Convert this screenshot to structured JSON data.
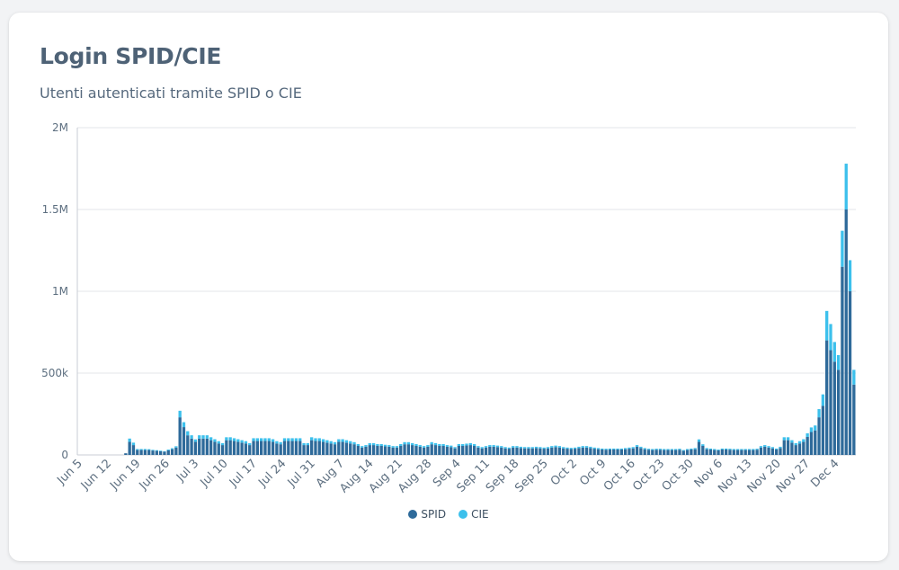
{
  "card": {
    "title": "Login SPID/CIE",
    "subtitle": "Utenti autenticati tramite SPID o CIE"
  },
  "colors": {
    "SPID": "#2e6a9a",
    "CIE": "#3cc0ec",
    "grid": "#e3e6ea"
  },
  "chart_data": {
    "type": "bar",
    "stacked": true,
    "title": "Login SPID/CIE",
    "subtitle": "Utenti autenticati tramite SPID o CIE",
    "xlabel": "",
    "ylabel": "",
    "ylim": [
      0,
      2000000
    ],
    "y_ticks": [
      {
        "value": 0,
        "label": "0"
      },
      {
        "value": 500000,
        "label": "500k"
      },
      {
        "value": 1000000,
        "label": "1M"
      },
      {
        "value": 1500000,
        "label": "1.5M"
      },
      {
        "value": 2000000,
        "label": "2M"
      }
    ],
    "x_tick_labels": [
      "Jun 5",
      "Jun 12",
      "Jun 19",
      "Jun 26",
      "Jul 3",
      "Jul 10",
      "Jul 17",
      "Jul 24",
      "Jul 31",
      "Aug 7",
      "Aug 14",
      "Aug 21",
      "Aug 28",
      "Sep 4",
      "Sep 11",
      "Sep 18",
      "Sep 25",
      "Oct 2",
      "Oct 9",
      "Oct 16",
      "Oct 23",
      "Oct 30",
      "Nov 6",
      "Nov 13",
      "Nov 20",
      "Nov 27",
      "Dec 4"
    ],
    "legend_position": "bottom-center",
    "grid": true,
    "series": [
      {
        "name": "SPID",
        "values": [
          0,
          0,
          0,
          0,
          0,
          0,
          0,
          0,
          0,
          0,
          0,
          0,
          10000,
          80000,
          60000,
          30000,
          30000,
          30000,
          30000,
          27000,
          25000,
          22000,
          20000,
          28000,
          35000,
          45000,
          230000,
          170000,
          120000,
          100000,
          80000,
          100000,
          100000,
          100000,
          90000,
          80000,
          70000,
          60000,
          90000,
          90000,
          85000,
          80000,
          75000,
          70000,
          60000,
          85000,
          85000,
          85000,
          85000,
          85000,
          80000,
          70000,
          65000,
          85000,
          85000,
          85000,
          85000,
          85000,
          60000,
          60000,
          90000,
          85000,
          85000,
          80000,
          75000,
          70000,
          65000,
          80000,
          80000,
          75000,
          70000,
          65000,
          55000,
          45000,
          50000,
          60000,
          60000,
          55000,
          55000,
          52000,
          50000,
          45000,
          45000,
          55000,
          65000,
          65000,
          60000,
          55000,
          50000,
          45000,
          50000,
          65000,
          60000,
          55000,
          55000,
          50000,
          48000,
          40000,
          55000,
          55000,
          58000,
          60000,
          55000,
          45000,
          40000,
          45000,
          50000,
          50000,
          48000,
          45000,
          40000,
          38000,
          45000,
          45000,
          42000,
          40000,
          40000,
          40000,
          42000,
          40000,
          38000,
          40000,
          45000,
          48000,
          45000,
          40000,
          38000,
          36000,
          38000,
          42000,
          45000,
          45000,
          42000,
          38000,
          35000,
          33000,
          32000,
          33000,
          33000,
          33000,
          33000,
          35000,
          38000,
          40000,
          50000,
          42000,
          35000,
          32000,
          30000,
          32000,
          32000,
          30000,
          30000,
          30000,
          30000,
          32000,
          25000,
          30000,
          33000,
          35000,
          80000,
          55000,
          35000,
          33000,
          30000,
          28000,
          33000,
          33000,
          32000,
          30000,
          30000,
          30000,
          30000,
          30000,
          30000,
          32000,
          45000,
          50000,
          45000,
          40000,
          33000,
          42000,
          90000,
          90000,
          75000,
          60000,
          70000,
          80000,
          110000,
          140000,
          150000,
          230000,
          300000,
          700000,
          640000,
          570000,
          520000,
          1150000,
          1500000,
          1000000,
          430000
        ]
      },
      {
        "name": "CIE",
        "values": [
          0,
          0,
          0,
          0,
          0,
          0,
          0,
          0,
          0,
          0,
          0,
          0,
          0,
          20000,
          15000,
          6000,
          6000,
          6000,
          5000,
          4000,
          4000,
          4000,
          3000,
          5000,
          6000,
          8000,
          40000,
          30000,
          25000,
          20000,
          15000,
          20000,
          20000,
          20000,
          18000,
          16000,
          14000,
          12000,
          18000,
          18000,
          17000,
          16000,
          15000,
          14000,
          12000,
          17000,
          17000,
          17000,
          17000,
          17000,
          16000,
          14000,
          13000,
          17000,
          17000,
          17000,
          17000,
          17000,
          12000,
          12000,
          18000,
          17000,
          17000,
          16000,
          15000,
          14000,
          13000,
          16000,
          16000,
          15000,
          14000,
          13000,
          11000,
          9000,
          10000,
          12000,
          12000,
          11000,
          11000,
          10000,
          10000,
          9000,
          9000,
          11000,
          13000,
          13000,
          12000,
          11000,
          10000,
          9000,
          10000,
          13000,
          12000,
          11000,
          11000,
          10000,
          9000,
          8000,
          11000,
          11000,
          11000,
          12000,
          11000,
          9000,
          8000,
          9000,
          10000,
          10000,
          9000,
          9000,
          8000,
          7000,
          9000,
          9000,
          8000,
          8000,
          8000,
          8000,
          8000,
          8000,
          7000,
          8000,
          9000,
          9000,
          9000,
          8000,
          7000,
          7000,
          7000,
          8000,
          9000,
          9000,
          8000,
          7000,
          7000,
          6000,
          6000,
          6000,
          6000,
          6000,
          6000,
          7000,
          7000,
          8000,
          10000,
          8000,
          7000,
          6000,
          6000,
          6000,
          6000,
          6000,
          6000,
          6000,
          6000,
          6000,
          5000,
          6000,
          6000,
          7000,
          15000,
          10000,
          7000,
          6000,
          6000,
          5000,
          6000,
          6000,
          6000,
          6000,
          6000,
          6000,
          6000,
          6000,
          6000,
          6000,
          9000,
          10000,
          9000,
          8000,
          6000,
          8000,
          18000,
          18000,
          15000,
          12000,
          14000,
          16000,
          22000,
          28000,
          30000,
          50000,
          70000,
          180000,
          160000,
          120000,
          90000,
          220000,
          280000,
          190000,
          90000
        ]
      }
    ]
  },
  "legend": [
    {
      "key": "SPID",
      "label": "SPID"
    },
    {
      "key": "CIE",
      "label": "CIE"
    }
  ]
}
